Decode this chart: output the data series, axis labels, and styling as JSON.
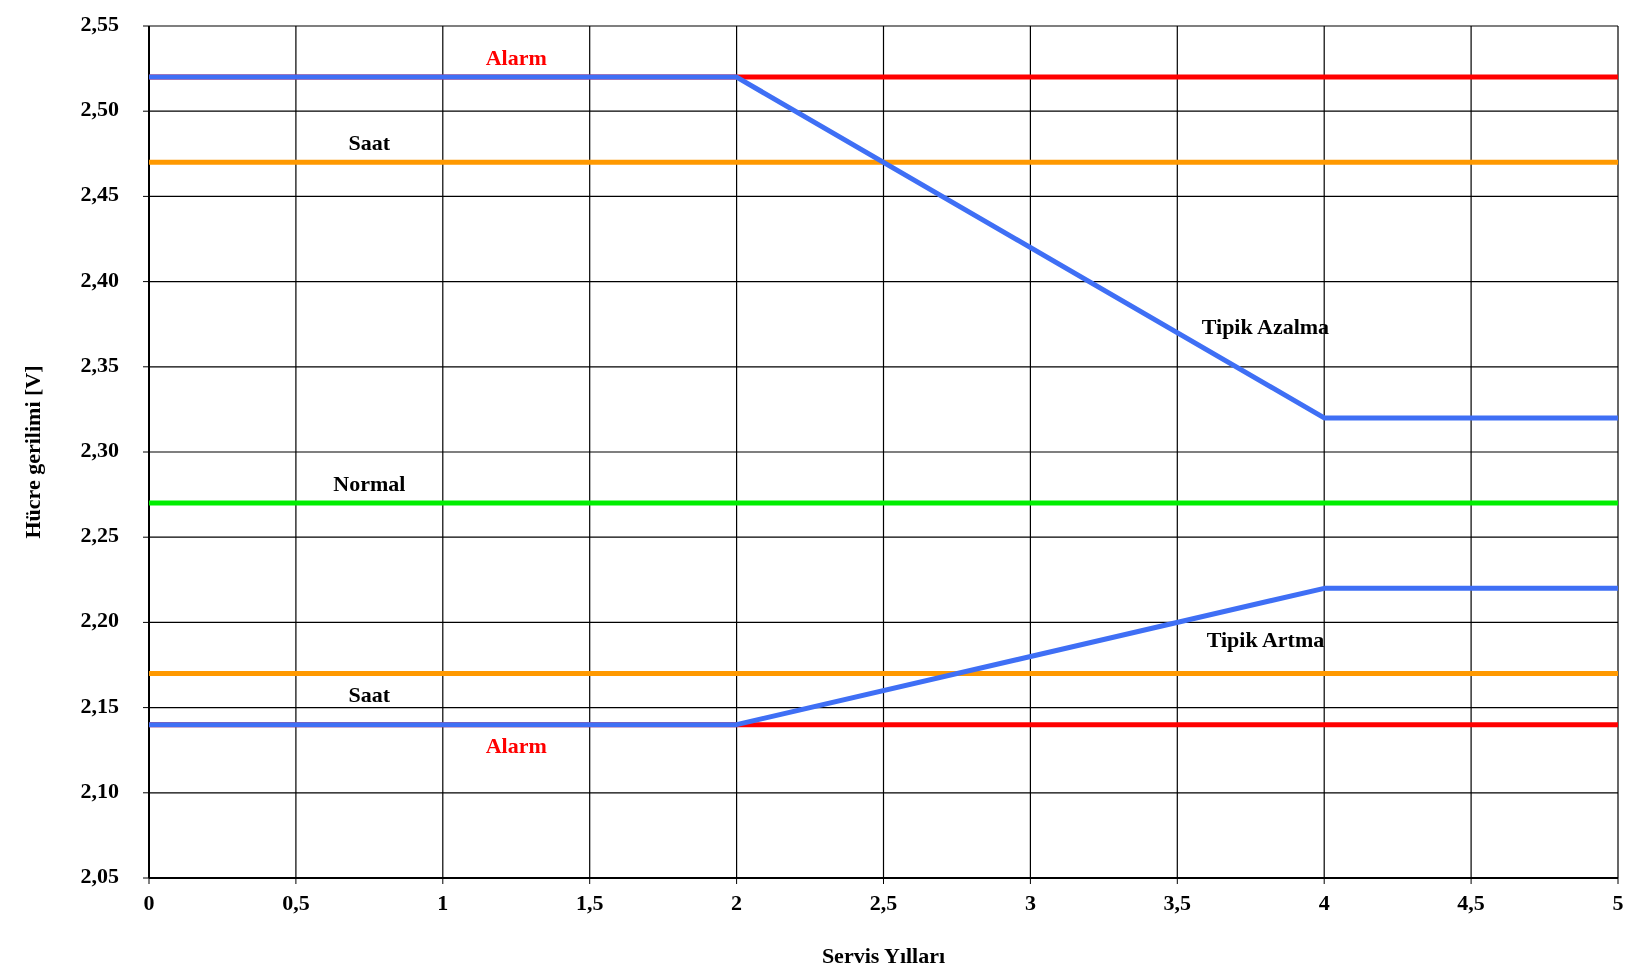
{
  "chart_data": {
    "type": "line",
    "xlabel": "Servis Yılları",
    "ylabel": "Hücre gerilimi [V]",
    "xlim": [
      0,
      5
    ],
    "xticks": [
      0,
      {
        "value": 0.5,
        "label": "0,5"
      },
      1,
      {
        "value": 1.5,
        "label": "1,5"
      },
      2,
      {
        "value": 2.5,
        "label": "2,5"
      },
      3,
      {
        "value": 3.5,
        "label": "3,5"
      },
      4,
      {
        "value": 4.5,
        "label": "4,5"
      },
      5
    ],
    "ylim": [
      2.05,
      2.55
    ],
    "yticks": [
      {
        "value": 2.05,
        "label": "2,05"
      },
      {
        "value": 2.1,
        "label": "2,10"
      },
      {
        "value": 2.15,
        "label": "2,15"
      },
      {
        "value": 2.2,
        "label": "2,20"
      },
      {
        "value": 2.25,
        "label": "2,25"
      },
      {
        "value": 2.3,
        "label": "2,30"
      },
      {
        "value": 2.35,
        "label": "2,35"
      },
      {
        "value": 2.4,
        "label": "2,40"
      },
      {
        "value": 2.45,
        "label": "2,45"
      },
      {
        "value": 2.5,
        "label": "2,50"
      },
      {
        "value": 2.55,
        "label": "2,55"
      }
    ],
    "grid": true,
    "marker": "none",
    "line_style": "solid",
    "ref_lines": [
      {
        "axis": "y",
        "value": 2.52,
        "label": "Alarm",
        "color": "#ff0000"
      },
      {
        "axis": "y",
        "value": 2.47,
        "label": "Saat",
        "color": "#ff9900"
      },
      {
        "axis": "y",
        "value": 2.27,
        "label": "Normal",
        "color": "#00ee00"
      },
      {
        "axis": "y",
        "value": 2.17,
        "label": "Saat",
        "color": "#ff9900"
      },
      {
        "axis": "y",
        "value": 2.14,
        "label": "Alarm",
        "color": "#ff0000"
      }
    ],
    "series": [
      {
        "name": "Tipik Azalma",
        "color": "#3f6ff5",
        "x": [
          0,
          2,
          4,
          5
        ],
        "values": [
          2.52,
          2.52,
          2.32,
          2.32
        ]
      },
      {
        "name": "Tipik Artma",
        "color": "#3f6ff5",
        "x": [
          0,
          2,
          4,
          5
        ],
        "values": [
          2.14,
          2.14,
          2.22,
          2.22
        ]
      }
    ]
  }
}
